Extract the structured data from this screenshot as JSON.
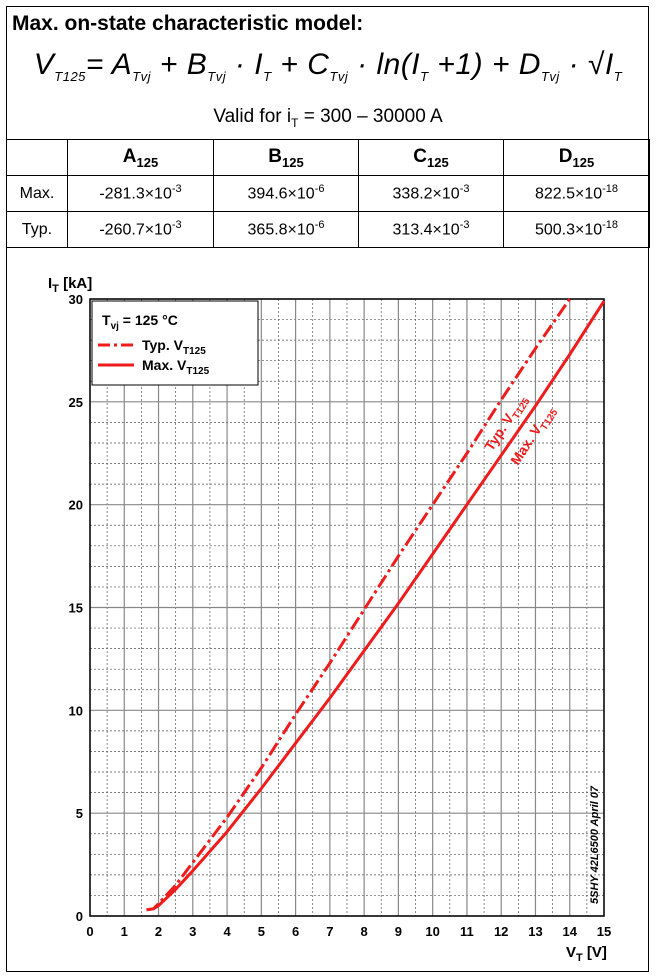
{
  "header": {
    "title": "Max. on-state characteristic model:",
    "formula": {
      "lhs": "V",
      "lhs_sub": "T125",
      "parts": [
        "= ",
        "A",
        "Tvj",
        " + ",
        "B",
        "Tvj",
        " · ",
        "I",
        "T",
        " + ",
        "C",
        "Tvj",
        " · ln(",
        "I",
        "T",
        " +1) + ",
        "D",
        "Tvj",
        " · √",
        "I",
        "T"
      ]
    },
    "valid_prefix": "Valid for i",
    "valid_sub": "T",
    "valid_suffix": " = 300 – 30000 A"
  },
  "table": {
    "columns": [
      {
        "main": "",
        "sub": ""
      },
      {
        "main": "A",
        "sub": "125"
      },
      {
        "main": "B",
        "sub": "125"
      },
      {
        "main": "C",
        "sub": "125"
      },
      {
        "main": "D",
        "sub": "125"
      }
    ],
    "rows": [
      {
        "label": "Max.",
        "cells": [
          {
            "mant": "-281.3×10",
            "exp": "-3"
          },
          {
            "mant": "394.6×10",
            "exp": "-6"
          },
          {
            "mant": "338.2×10",
            "exp": "-3"
          },
          {
            "mant": "822.5×10",
            "exp": "-18"
          }
        ]
      },
      {
        "label": "Typ.",
        "cells": [
          {
            "mant": "-260.7×10",
            "exp": "-3"
          },
          {
            "mant": "365.8×10",
            "exp": "-6"
          },
          {
            "mant": "313.4×10",
            "exp": "-3"
          },
          {
            "mant": "500.3×10",
            "exp": "-18"
          }
        ]
      }
    ]
  },
  "chart_data": {
    "type": "line",
    "xlabel": "V",
    "xlabel_sub": "T",
    "xlabel_unit": " [V]",
    "ylabel": "I",
    "ylabel_sub": "T",
    "ylabel_unit": " [kA]",
    "xlim": [
      0,
      15
    ],
    "ylim": [
      0,
      30
    ],
    "xticks": [
      0,
      1,
      2,
      3,
      4,
      5,
      6,
      7,
      8,
      9,
      10,
      11,
      12,
      13,
      14,
      15
    ],
    "yticks": [
      0,
      5,
      10,
      15,
      20,
      25,
      30
    ],
    "grid": "major and minor (x every 0.5 V, y every 1 kA)",
    "legend": {
      "placement": "top-left",
      "title": "T",
      "title_sub": "vj",
      "title_suffix": " = 125 °C"
    },
    "watermark": "5SHY 42L6500 April 07",
    "series": [
      {
        "name": "Typ. V",
        "name_sub": "T125",
        "style": "dash-dot",
        "color": "#ee1c1c",
        "points": [
          [
            1.65,
            0.3
          ],
          [
            1.85,
            0.35
          ],
          [
            2.0,
            0.6
          ],
          [
            2.5,
            1.5
          ],
          [
            3.0,
            2.6
          ],
          [
            4.0,
            4.8
          ],
          [
            5.0,
            7.2
          ],
          [
            6.0,
            9.8
          ],
          [
            7.0,
            12.3
          ],
          [
            8.0,
            14.9
          ],
          [
            9.0,
            17.5
          ],
          [
            10.0,
            20.0
          ],
          [
            11.0,
            22.5
          ],
          [
            12.0,
            25.1
          ],
          [
            13.0,
            27.6
          ],
          [
            14.0,
            30.0
          ]
        ]
      },
      {
        "name": "Max. V",
        "name_sub": "T125",
        "style": "solid",
        "color": "#ee1c1c",
        "points": [
          [
            1.65,
            0.3
          ],
          [
            1.85,
            0.35
          ],
          [
            2.0,
            0.5
          ],
          [
            2.5,
            1.3
          ],
          [
            3.0,
            2.2
          ],
          [
            4.0,
            4.1
          ],
          [
            5.0,
            6.2
          ],
          [
            6.0,
            8.4
          ],
          [
            7.0,
            10.6
          ],
          [
            8.0,
            12.9
          ],
          [
            9.0,
            15.2
          ],
          [
            10.0,
            17.6
          ],
          [
            11.0,
            20.0
          ],
          [
            12.0,
            22.4
          ],
          [
            13.0,
            24.8
          ],
          [
            14.0,
            27.3
          ],
          [
            15.0,
            29.9
          ]
        ]
      }
    ],
    "curve_labels": [
      {
        "text": "Typ. V",
        "sub": "T125"
      },
      {
        "text": "Max. V",
        "sub": "T125"
      }
    ]
  }
}
